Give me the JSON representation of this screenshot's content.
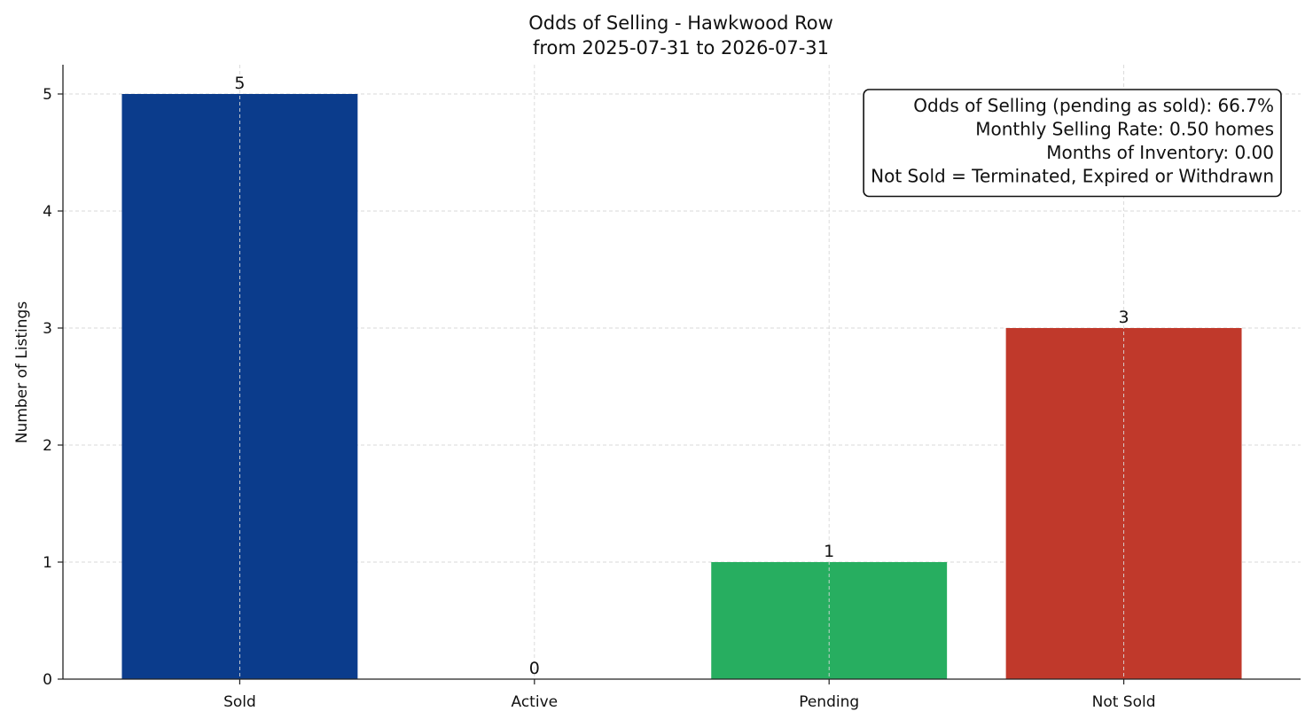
{
  "chart_data": {
    "type": "bar",
    "title": "Odds of Selling - Hawkwood Row",
    "subtitle": "from 2025-07-31 to 2026-07-31",
    "xlabel": "",
    "ylabel": "Number of Listings",
    "categories": [
      "Sold",
      "Active",
      "Pending",
      "Not Sold"
    ],
    "values": [
      5,
      0,
      1,
      3
    ],
    "colors": [
      "#0b3c8c",
      "#1f77b4",
      "#27ae60",
      "#c0392b"
    ],
    "ylim": [
      0,
      5.25
    ],
    "yticks": [
      0,
      1,
      2,
      3,
      4,
      5
    ],
    "grid": true,
    "annotation_box": {
      "placement": "top-right",
      "lines": [
        "Odds of Selling (pending as sold): 66.7%",
        "Monthly Selling Rate: 0.50 homes",
        "Months of Inventory: 0.00",
        "Not Sold = Terminated, Expired or Withdrawn"
      ]
    }
  }
}
